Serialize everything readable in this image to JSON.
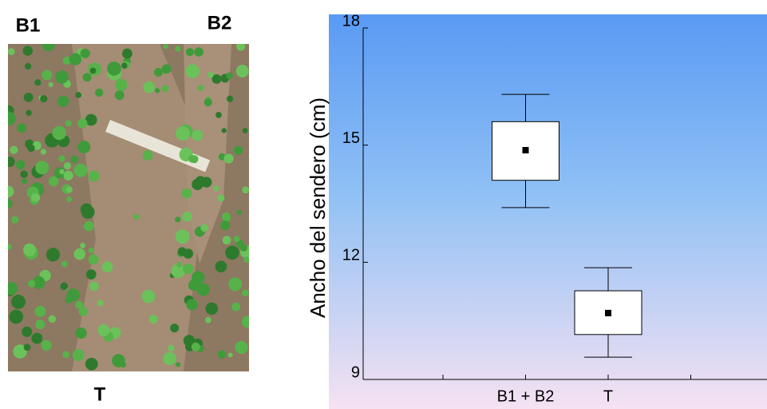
{
  "photo": {
    "labels": [
      "B1",
      "B2",
      "T"
    ]
  },
  "chart_data": {
    "type": "box",
    "y_label": "Ancho del sendero (cm)",
    "categories": [
      null,
      "B1 + B2",
      "T",
      null
    ],
    "mean": [
      null,
      14.87,
      10.7,
      null
    ],
    "box_low": [
      null,
      14.1,
      10.15,
      null
    ],
    "box_high": [
      null,
      15.6,
      11.27,
      null
    ],
    "whisker_low": [
      null,
      13.4,
      9.57,
      null
    ],
    "whisker_high": [
      null,
      16.3,
      11.86,
      null
    ],
    "ylim": [
      9,
      18
    ],
    "yticks": [
      9,
      12,
      15,
      18
    ],
    "color": "#ffffff"
  }
}
